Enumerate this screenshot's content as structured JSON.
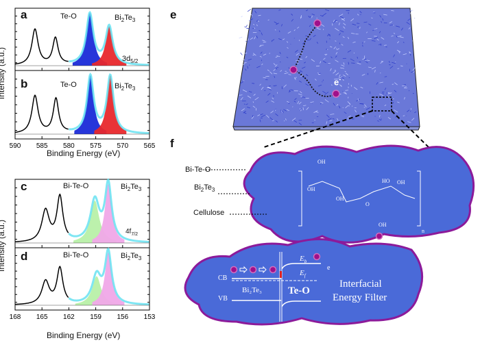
{
  "panels": {
    "a": "a",
    "b": "b",
    "c": "c",
    "d": "d",
    "e": "e",
    "f": "f"
  },
  "chart_data": [
    {
      "type": "area",
      "panel": "a",
      "xlim": [
        590,
        565
      ],
      "xticks": [
        590,
        585,
        580,
        575,
        570,
        565
      ],
      "xlabel": "",
      "ylabel": "Intensity (a.u.)",
      "labels": {
        "left": "Te-O",
        "right_main": "Bi",
        "right_sub": "2",
        "right_main2": "Te",
        "right_sub2": "3",
        "orbital": "3d",
        "orbital_sub": "5/2"
      },
      "peaks": [
        {
          "center": 586.3,
          "height": 0.7,
          "width": 0.7,
          "color": "#000000",
          "fill": false
        },
        {
          "center": 582.5,
          "height": 0.52,
          "width": 0.6,
          "color": "#000000",
          "fill": false
        },
        {
          "center": 576.1,
          "height": 1.0,
          "width": 0.8,
          "color": "#1a2bd8",
          "fill": true
        },
        {
          "center": 572.5,
          "height": 0.75,
          "width": 0.8,
          "color": "#e8282c",
          "fill": true
        }
      ]
    },
    {
      "type": "area",
      "panel": "b",
      "xlim": [
        590,
        565
      ],
      "xticks": [
        590,
        585,
        580,
        575,
        570,
        565
      ],
      "xlabel": "Binding Energy (eV)",
      "labels": {
        "left": "Te-O",
        "right_main": "Bi",
        "right_sub": "2",
        "right_main2": "Te",
        "right_sub2": "3"
      },
      "peaks": [
        {
          "center": 586.3,
          "height": 0.66,
          "width": 0.7,
          "color": "#000000",
          "fill": false
        },
        {
          "center": 582.4,
          "height": 0.6,
          "width": 0.6,
          "color": "#000000",
          "fill": false
        },
        {
          "center": 576.0,
          "height": 1.0,
          "width": 0.75,
          "color": "#1a2bd8",
          "fill": true
        },
        {
          "center": 572.3,
          "height": 1.0,
          "width": 0.75,
          "color": "#e8282c",
          "fill": true
        }
      ]
    },
    {
      "type": "area",
      "panel": "c",
      "xlim": [
        168,
        153
      ],
      "xticks": [
        168,
        165,
        162,
        159,
        156,
        153
      ],
      "xlabel": "",
      "ylabel": "Intensity (a.u.)",
      "labels": {
        "left": "Bi-Te-O",
        "right_main": "Bi",
        "right_sub": "2",
        "right_main2": "Te",
        "right_sub2": "3",
        "orbital": "4f",
        "orbital_sub": "7/2"
      },
      "peaks": [
        {
          "center": 164.6,
          "height": 0.55,
          "width": 0.5,
          "color": "#000000",
          "fill": false
        },
        {
          "center": 163.0,
          "height": 0.78,
          "width": 0.4,
          "color": "#000000",
          "fill": false
        },
        {
          "center": 159.1,
          "height": 0.72,
          "width": 0.6,
          "color": "#b8f0a8",
          "fill": true
        },
        {
          "center": 157.6,
          "height": 1.0,
          "width": 0.45,
          "color": "#f0a8e8",
          "fill": true
        }
      ]
    },
    {
      "type": "area",
      "panel": "d",
      "xlim": [
        168,
        153
      ],
      "xticks": [
        168,
        165,
        162,
        159,
        156,
        153
      ],
      "xlabel": "Binding Energy (eV)",
      "labels": {
        "left": "Bi-Te-O",
        "right_main": "Bi",
        "right_sub": "2",
        "right_main2": "Te",
        "right_sub2": "3"
      },
      "peaks": [
        {
          "center": 164.6,
          "height": 0.45,
          "width": 0.5,
          "color": "#000000",
          "fill": false
        },
        {
          "center": 163.0,
          "height": 0.7,
          "width": 0.4,
          "color": "#000000",
          "fill": false
        },
        {
          "center": 158.9,
          "height": 0.55,
          "width": 0.6,
          "color": "#b8f0a8",
          "fill": true
        },
        {
          "center": 157.6,
          "height": 1.0,
          "width": 0.45,
          "color": "#f0a8e8",
          "fill": true
        }
      ]
    }
  ],
  "diagram": {
    "electron": "e",
    "electron_sup": "-",
    "labels": {
      "bitео": "Bi-Te-O",
      "bi2te3_main": "Bi",
      "bi2te3_sub": "2",
      "bi2te3_main2": "Te",
      "bi2te3_sub2": "3",
      "cellulose": "Cellulose"
    },
    "molecule": {
      "oh1": "OH",
      "oh2": "OH",
      "oh3": "OH",
      "ho1": "HO",
      "oh4": "OH",
      "oh5": "OH",
      "o": "O",
      "n": "n"
    },
    "band": {
      "cb": "CB",
      "vb": "VB",
      "bi2te3": "Bi₂Te₃",
      "teo": "Te-O",
      "eb": "E",
      "eb_sub": "b",
      "ef": "E",
      "ef_sub": "f",
      "e": "e",
      "title1": "Interfacial",
      "title2": "Energy Filter"
    }
  }
}
